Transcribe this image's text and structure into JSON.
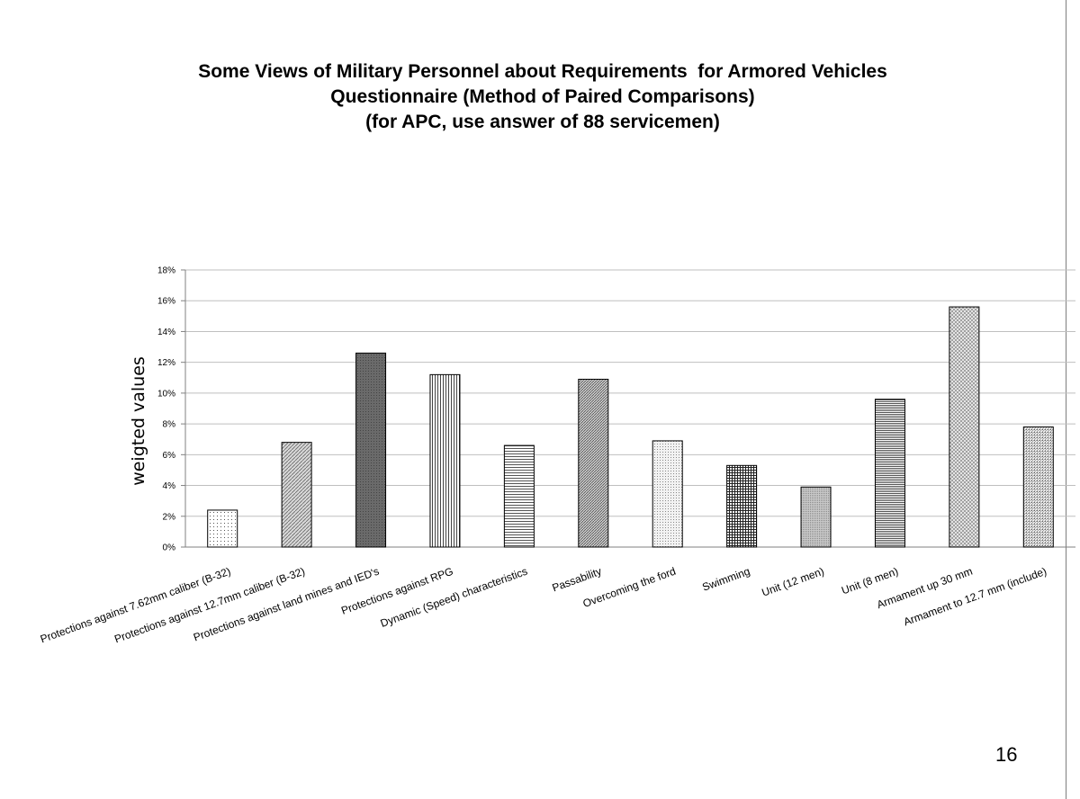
{
  "page": {
    "title_lines": [
      "Some Views of Military Personnel about Requirements  for Armored Vehicles",
      "Questionnaire (Method of Paired Comparisons)",
      "(for APC, use answer of 88 servicemen)"
    ],
    "page_number": "16"
  },
  "chart_data": {
    "type": "bar",
    "title": "Some Views of Military Personnel about Requirements  for Armored Vehicles Questionnaire (Method of Paired Comparisons) (for APC, use answer of 88 servicemen)",
    "xlabel": "",
    "ylabel": "weigted values",
    "ylim": [
      0,
      0.18
    ],
    "yticks": [
      0,
      0.02,
      0.04,
      0.06,
      0.08,
      0.1,
      0.12,
      0.14,
      0.16,
      0.18
    ],
    "ytick_labels": [
      "0%",
      "2%",
      "4%",
      "6%",
      "8%",
      "10%",
      "12%",
      "14%",
      "16%",
      "18%"
    ],
    "grid": true,
    "legend": "none",
    "categories": [
      "Protections against 7.62mm caliber (B-32)",
      "Protections against 12.7mm caliber (B-32)",
      "Protections against land mines and IED's",
      "Protections against RPG",
      "Dynamic (Speed) characteristics",
      "Passability",
      "Overcoming the ford",
      "Swimming",
      "Unit (12 men)",
      "Unit (8 men)",
      "Armament up 30 mm",
      "Armament to 12.7 mm (include)"
    ],
    "values": [
      0.024,
      0.068,
      0.126,
      0.112,
      0.066,
      0.109,
      0.069,
      0.053,
      0.039,
      0.096,
      0.156,
      0.078
    ],
    "bar_patterns": [
      "dots-sparse",
      "diagonal-light",
      "dark-fine",
      "vertical-lines",
      "horizontal-lines",
      "diagonal-dense",
      "dots-medium",
      "crosshatch",
      "dots-dense",
      "horizontal-dense",
      "diagonal-cross",
      "diagonal-checker"
    ],
    "colors": {
      "bar_edge": "#000000",
      "grid": "#bfbfbf",
      "axis": "#808080",
      "text": "#000000"
    }
  }
}
